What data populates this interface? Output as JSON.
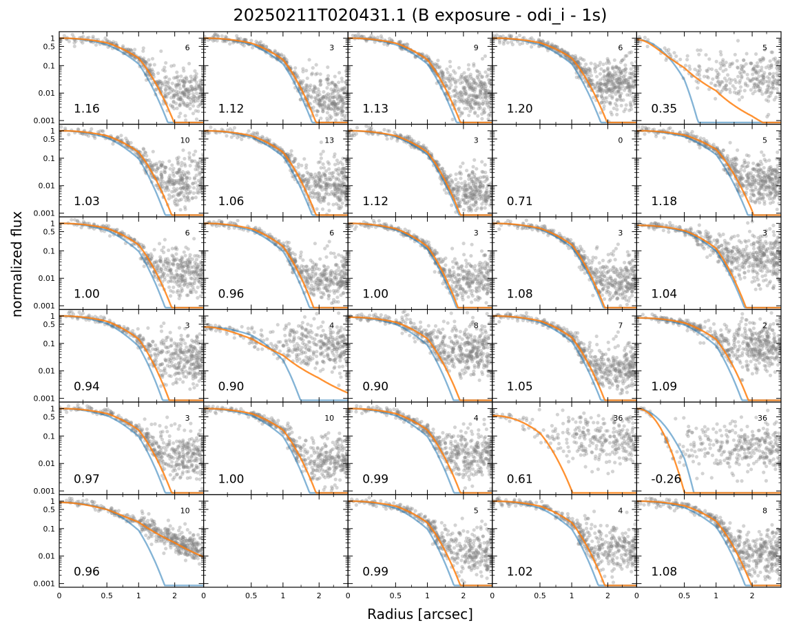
{
  "title": "20250211T020431.1 (B exposure - odi_i - 1s)",
  "colors": {
    "points": "#808080",
    "model_blue": "#1f77b4",
    "model_orange": "#ff7f0e",
    "frame": "#000000",
    "background": "#ffffff"
  },
  "chart_data": {
    "type": "scatter",
    "title": "20250211T020431.1 (B exposure - odi_i - 1s)",
    "xlabel": "Radius [arcsec]",
    "ylabel": "normalized flux",
    "grid": false,
    "legend": "none",
    "layout": {
      "rows": 6,
      "cols": 5
    },
    "x_scale": "reciprocal-like (ticks 0, 0.5, 1, 2)",
    "y_scale": "log",
    "xlim": [
      0,
      3
    ],
    "ylim": [
      0.001,
      1
    ],
    "x_ticks": [
      "0",
      "0.5",
      "1",
      "2"
    ],
    "y_ticks": [
      "0.001",
      "0.01",
      "0.1",
      "0.5",
      "1"
    ],
    "series": [
      {
        "name": "points",
        "color": "#808080"
      },
      {
        "name": "gaussian model",
        "color": "#1f77b4"
      },
      {
        "name": "moffat model",
        "color": "#ff7f0e"
      }
    ],
    "panels": [
      {
        "row": 0,
        "col": 0,
        "fwhm": "1.16",
        "count": "6",
        "blue_hw": 1.25,
        "orange_hw": 1.5,
        "peak": 1.0,
        "noise": 0.012,
        "scatter_start": 1.1,
        "density": 1.0
      },
      {
        "row": 0,
        "col": 1,
        "fwhm": "1.12",
        "count": "3",
        "blue_hw": 1.25,
        "orange_hw": 1.45,
        "peak": 1.0,
        "noise": 0.006,
        "scatter_start": 1.3,
        "density": 1.1
      },
      {
        "row": 0,
        "col": 2,
        "fwhm": "1.13",
        "count": "9",
        "blue_hw": 1.25,
        "orange_hw": 1.45,
        "peak": 1.0,
        "noise": 0.01,
        "scatter_start": 1.2,
        "density": 1.1
      },
      {
        "row": 0,
        "col": 3,
        "fwhm": "1.20",
        "count": "6",
        "blue_hw": 1.25,
        "orange_hw": 1.5,
        "peak": 1.0,
        "noise": 0.02,
        "scatter_start": 1.1,
        "density": 1.3
      },
      {
        "row": 0,
        "col": 4,
        "fwhm": "0.35",
        "count": "5",
        "blue_hw": 0.5,
        "orange_hw": 0.6,
        "peak": 0.9,
        "noise": 0.04,
        "scatter_start": 0.25,
        "density": 0.7,
        "orange_tail": true
      },
      {
        "row": 1,
        "col": 0,
        "fwhm": "1.03",
        "count": "10",
        "blue_hw": 1.2,
        "orange_hw": 1.45,
        "peak": 1.0,
        "noise": 0.015,
        "scatter_start": 1.05,
        "density": 1.0
      },
      {
        "row": 1,
        "col": 1,
        "fwhm": "1.06",
        "count": "13",
        "blue_hw": 1.25,
        "orange_hw": 1.45,
        "peak": 1.0,
        "noise": 0.01,
        "scatter_start": 1.2,
        "density": 1.1
      },
      {
        "row": 1,
        "col": 2,
        "fwhm": "1.12",
        "count": "3",
        "blue_hw": 1.3,
        "orange_hw": 1.45,
        "peak": 1.0,
        "noise": 0.006,
        "scatter_start": 1.3,
        "density": 1.1
      },
      {
        "row": 1,
        "col": 3,
        "fwhm": "0.71",
        "count": "0",
        "empty": true
      },
      {
        "row": 1,
        "col": 4,
        "fwhm": "1.18",
        "count": "5",
        "blue_hw": 1.3,
        "orange_hw": 1.55,
        "peak": 1.0,
        "noise": 0.015,
        "scatter_start": 1.2,
        "density": 1.2
      },
      {
        "row": 2,
        "col": 0,
        "fwhm": "1.00",
        "count": "6",
        "blue_hw": 1.2,
        "orange_hw": 1.45,
        "peak": 1.0,
        "noise": 0.015,
        "scatter_start": 1.05,
        "density": 1.0
      },
      {
        "row": 2,
        "col": 1,
        "fwhm": "0.96",
        "count": "6",
        "blue_hw": 1.2,
        "orange_hw": 1.4,
        "peak": 1.0,
        "noise": 0.01,
        "scatter_start": 1.1,
        "density": 1.0
      },
      {
        "row": 2,
        "col": 2,
        "fwhm": "1.00",
        "count": "3",
        "blue_hw": 1.25,
        "orange_hw": 1.4,
        "peak": 1.0,
        "noise": 0.008,
        "scatter_start": 1.2,
        "density": 1.0
      },
      {
        "row": 2,
        "col": 3,
        "fwhm": "1.08",
        "count": "3",
        "blue_hw": 1.3,
        "orange_hw": 1.45,
        "peak": 1.0,
        "noise": 0.008,
        "scatter_start": 1.2,
        "density": 1.1
      },
      {
        "row": 2,
        "col": 4,
        "fwhm": "1.04",
        "count": "3",
        "blue_hw": 1.25,
        "orange_hw": 1.4,
        "peak": 0.85,
        "noise": 0.05,
        "scatter_start": 0.7,
        "density": 1.2
      },
      {
        "row": 3,
        "col": 0,
        "fwhm": "0.94",
        "count": "3",
        "blue_hw": 1.15,
        "orange_hw": 1.4,
        "peak": 1.0,
        "noise": 0.03,
        "scatter_start": 0.95,
        "density": 1.0
      },
      {
        "row": 3,
        "col": 1,
        "fwhm": "0.90",
        "count": "4",
        "blue_hw": 1.1,
        "orange_hw": 1.2,
        "peak": 0.4,
        "noise": 0.08,
        "scatter_start": 0.4,
        "density": 0.9,
        "orange_tail": true
      },
      {
        "row": 3,
        "col": 2,
        "fwhm": "0.90",
        "count": "8",
        "blue_hw": 1.2,
        "orange_hw": 1.45,
        "peak": 0.9,
        "noise": 0.06,
        "scatter_start": 0.6,
        "density": 1.2
      },
      {
        "row": 3,
        "col": 3,
        "fwhm": "1.05",
        "count": "7",
        "blue_hw": 1.25,
        "orange_hw": 1.45,
        "peak": 1.0,
        "noise": 0.012,
        "scatter_start": 1.1,
        "density": 1.1
      },
      {
        "row": 3,
        "col": 4,
        "fwhm": "1.09",
        "count": "2",
        "blue_hw": 1.2,
        "orange_hw": 1.45,
        "peak": 0.85,
        "noise": 0.07,
        "scatter_start": 0.75,
        "density": 1.2
      },
      {
        "row": 4,
        "col": 0,
        "fwhm": "0.97",
        "count": "3",
        "blue_hw": 1.2,
        "orange_hw": 1.45,
        "peak": 1.0,
        "noise": 0.02,
        "scatter_start": 1.05,
        "density": 1.0
      },
      {
        "row": 4,
        "col": 1,
        "fwhm": "1.00",
        "count": "10",
        "blue_hw": 1.2,
        "orange_hw": 1.45,
        "peak": 1.0,
        "noise": 0.012,
        "scatter_start": 1.1,
        "density": 1.0
      },
      {
        "row": 4,
        "col": 2,
        "fwhm": "0.99",
        "count": "4",
        "blue_hw": 1.2,
        "orange_hw": 1.45,
        "peak": 1.0,
        "noise": 0.02,
        "scatter_start": 1.1,
        "density": 1.1
      },
      {
        "row": 4,
        "col": 3,
        "fwhm": "0.61",
        "count": "36",
        "blue_hw": 0,
        "orange_hw": 0.8,
        "peak": 0.55,
        "noise": 0.08,
        "scatter_start": 0.3,
        "density": 0.7,
        "no_blue": true
      },
      {
        "row": 4,
        "col": 4,
        "fwhm": "-0.26",
        "count": "36",
        "blue_hw": 0.45,
        "orange_hw": 0.38,
        "peak": 1.0,
        "noise": 0.04,
        "scatter_start": 0.4,
        "density": 0.8
      },
      {
        "row": 5,
        "col": 0,
        "fwhm": "0.96",
        "count": "10",
        "blue_hw": 1.2,
        "orange_hw": 1.65,
        "peak": 0.9,
        "noise": 0.015,
        "scatter_start": 1.05,
        "density": 1.0,
        "orange_tail": true
      },
      {
        "row": 5,
        "col": 1,
        "fwhm": "",
        "count": "",
        "empty": true,
        "blank": true
      },
      {
        "row": 5,
        "col": 2,
        "fwhm": "0.99",
        "count": "5",
        "blue_hw": 1.2,
        "orange_hw": 1.45,
        "peak": 1.0,
        "noise": 0.015,
        "scatter_start": 1.1,
        "density": 1.0
      },
      {
        "row": 5,
        "col": 3,
        "fwhm": "1.02",
        "count": "4",
        "blue_hw": 1.2,
        "orange_hw": 1.45,
        "peak": 1.0,
        "noise": 0.015,
        "scatter_start": 1.1,
        "density": 1.0
      },
      {
        "row": 5,
        "col": 4,
        "fwhm": "1.08",
        "count": "8",
        "blue_hw": 1.25,
        "orange_hw": 1.5,
        "peak": 1.0,
        "noise": 0.012,
        "scatter_start": 1.1,
        "density": 1.1
      }
    ]
  }
}
